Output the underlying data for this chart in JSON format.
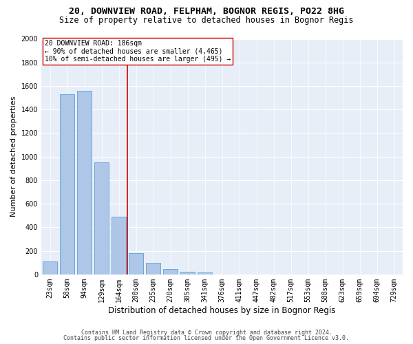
{
  "title_line1": "20, DOWNVIEW ROAD, FELPHAM, BOGNOR REGIS, PO22 8HG",
  "title_line2": "Size of property relative to detached houses in Bognor Regis",
  "xlabel": "Distribution of detached houses by size in Bognor Regis",
  "ylabel": "Number of detached properties",
  "categories": [
    "23sqm",
    "58sqm",
    "94sqm",
    "129sqm",
    "164sqm",
    "200sqm",
    "235sqm",
    "270sqm",
    "305sqm",
    "341sqm",
    "376sqm",
    "411sqm",
    "447sqm",
    "482sqm",
    "517sqm",
    "553sqm",
    "588sqm",
    "623sqm",
    "659sqm",
    "694sqm",
    "729sqm"
  ],
  "values": [
    110,
    1530,
    1560,
    950,
    490,
    180,
    100,
    48,
    25,
    15,
    0,
    0,
    0,
    0,
    0,
    0,
    0,
    0,
    0,
    0,
    0
  ],
  "bar_color": "#aec6e8",
  "bar_edge_color": "#5a9fd4",
  "vline_x": 4.5,
  "vline_color": "#cc0000",
  "annotation_text": "20 DOWNVIEW ROAD: 186sqm\n← 90% of detached houses are smaller (4,465)\n10% of semi-detached houses are larger (495) →",
  "annotation_box_color": "#ffffff",
  "annotation_box_edge": "#cc0000",
  "ylim": [
    0,
    2000
  ],
  "yticks": [
    0,
    200,
    400,
    600,
    800,
    1000,
    1200,
    1400,
    1600,
    1800,
    2000
  ],
  "background_color": "#e8eef8",
  "footer_line1": "Contains HM Land Registry data © Crown copyright and database right 2024.",
  "footer_line2": "Contains public sector information licensed under the Open Government Licence v3.0.",
  "title_fontsize": 9.5,
  "subtitle_fontsize": 8.5,
  "axis_label_fontsize": 8,
  "tick_fontsize": 7,
  "annotation_fontsize": 7,
  "footer_fontsize": 6
}
